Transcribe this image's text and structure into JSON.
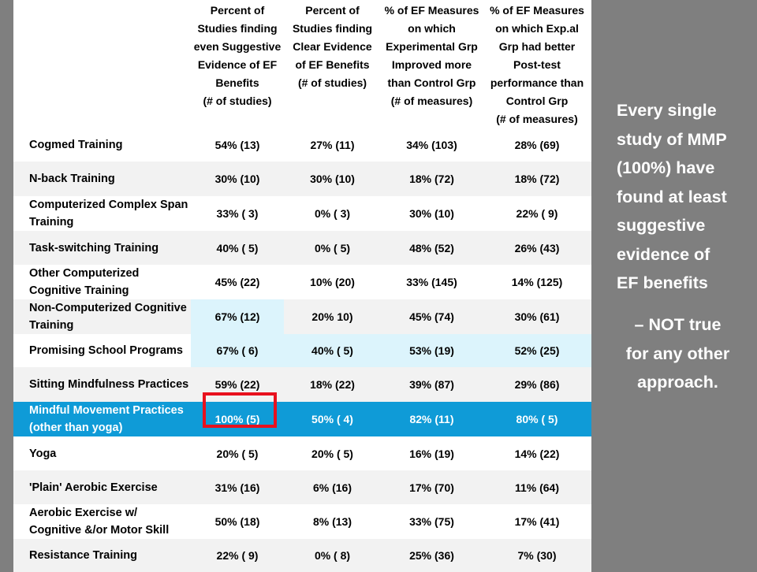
{
  "headers": [
    "",
    "Percent of\nStudies finding\neven Suggestive\nEvidence of EF\nBenefits\n(# of studies)",
    "Percent of\nStudies finding\nClear Evidence\nof EF Benefits\n(# of studies)",
    "% of EF Measures\non which\nExperimental Grp\nImproved more\nthan Control Grp\n(# of measures)",
    "% of EF Measures\non which Exp.al\nGrp had better\nPost-test\nperformance than\nControl Grp\n(# of measures)"
  ],
  "rows": [
    {
      "name": "Cogmed Training",
      "v": [
        "54% (13)",
        "27% (11)",
        "34% (103)",
        "28% (69)"
      ]
    },
    {
      "name": "N-back Training",
      "v": [
        "30% (10)",
        "30% (10)",
        "18% (72)",
        "18% (72)"
      ]
    },
    {
      "name": "Computerized Complex Span Training",
      "v": [
        "33% ( 3)",
        "0% ( 3)",
        "30% (10)",
        "22% ( 9)"
      ]
    },
    {
      "name": "Task-switching Training",
      "v": [
        "40% ( 5)",
        "0% ( 5)",
        "48% (52)",
        "26% (43)"
      ]
    },
    {
      "name": "Other Computerized Cognitive Training",
      "v": [
        "45% (22)",
        "10% (20)",
        "33% (145)",
        "14% (125)"
      ]
    },
    {
      "name": "Non-Computerized Cognitive Training",
      "v": [
        "67% (12)",
        "20% 10)",
        "45% (74)",
        "30% (61)"
      ]
    },
    {
      "name": "Promising School Programs",
      "v": [
        "67% ( 6)",
        "40% ( 5)",
        "53% (19)",
        "52% (25)"
      ]
    },
    {
      "name": "Sitting Mindfulness Practices",
      "v": [
        "59% (22)",
        "18% (22)",
        "39% (87)",
        "29% (86)"
      ]
    },
    {
      "name": "Mindful Movement Practices (other than yoga)",
      "v": [
        "100% (5)",
        "50% ( 4)",
        "82% (11)",
        "80% ( 5)"
      ]
    },
    {
      "name": "Yoga",
      "v": [
        "20% ( 5)",
        "20% ( 5)",
        "16% (19)",
        "14% (22)"
      ]
    },
    {
      "name": "'Plain' Aerobic Exercise",
      "v": [
        "31% (16)",
        "6% (16)",
        "17% (70)",
        "11% (64)"
      ]
    },
    {
      "name": "Aerobic Exercise w/ Cognitive &/or Motor Skill",
      "v": [
        "50% (18)",
        "8% (13)",
        "33% (75)",
        "17% (41)"
      ]
    },
    {
      "name": "Resistance Training",
      "v": [
        "22% ( 9)",
        "0% ( 8)",
        "25% (36)",
        "7% (30)"
      ]
    }
  ],
  "side_note": [
    "Every single",
    "study of MMP",
    "(100%) have",
    "found at least",
    "suggestive",
    "evidence of",
    "EF benefits"
  ],
  "side_note2": [
    "– NOT true",
    "for any other",
    "approach."
  ],
  "colors": {
    "background": "#7f7f7f",
    "band": "#f2f2f2",
    "light_blue": "#dcf4fc",
    "highlight_blue": "#0f9bd7",
    "red_box": "#e8111e"
  }
}
